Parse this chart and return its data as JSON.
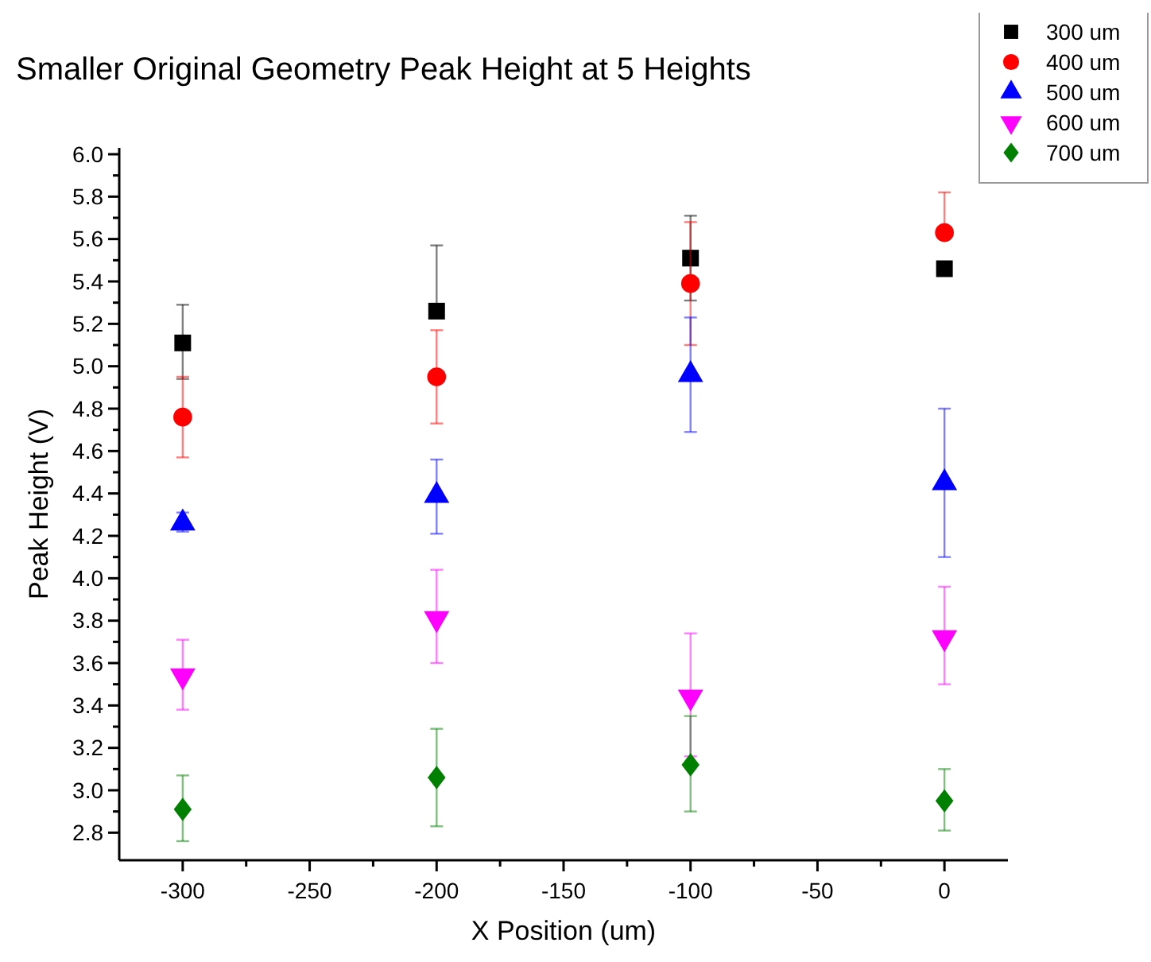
{
  "chart_data": {
    "type": "scatter",
    "title": "Smaller Original Geometry Peak Height at 5 Heights",
    "xlabel": "X Position (um)",
    "ylabel": "Peak Height (V)",
    "x": [
      -300,
      -200,
      -100,
      0
    ],
    "xlim": [
      -325,
      25
    ],
    "xticks": [
      -300,
      {
        "value": -275,
        "label": null
      },
      -250,
      {
        "value": -225,
        "label": null
      },
      -200,
      {
        "value": -175,
        "label": null
      },
      -150,
      {
        "value": -125,
        "label": null
      },
      -100,
      {
        "value": -75,
        "label": null
      },
      -50,
      {
        "value": -25,
        "label": null
      },
      0
    ],
    "ylim": [
      2.67,
      6.03
    ],
    "yticks": [
      2.8,
      {
        "value": 2.9,
        "label": null
      },
      {
        "value": 3,
        "label": "3.0"
      },
      {
        "value": 3.1,
        "label": null
      },
      3.2,
      {
        "value": 3.3,
        "label": null
      },
      3.4,
      {
        "value": 3.5,
        "label": null
      },
      3.6,
      {
        "value": 3.7,
        "label": null
      },
      3.8,
      {
        "value": 3.9,
        "label": null
      },
      {
        "value": 4,
        "label": "4.0"
      },
      {
        "value": 4.1,
        "label": null
      },
      4.2,
      {
        "value": 4.3,
        "label": null
      },
      4.4,
      {
        "value": 4.5,
        "label": null
      },
      4.6,
      {
        "value": 4.7,
        "label": null
      },
      4.8,
      {
        "value": 4.9,
        "label": null
      },
      {
        "value": 5,
        "label": "5.0"
      },
      {
        "value": 5.1,
        "label": null
      },
      5.2,
      {
        "value": 5.3,
        "label": null
      },
      5.4,
      {
        "value": 5.5,
        "label": null
      },
      5.6,
      {
        "value": 5.7,
        "label": null
      },
      5.8,
      {
        "value": 5.9,
        "label": null
      },
      {
        "value": 6,
        "label": "6.0"
      }
    ],
    "grid": false,
    "legend": "top right",
    "series": [
      {
        "name": "300 um",
        "color": "#000000",
        "marker": "square",
        "values": [
          5.11,
          5.26,
          5.51,
          5.46
        ],
        "errors": [
          [
            4.94,
            5.29
          ],
          [
            5.26,
            5.57
          ],
          [
            5.31,
            5.71
          ],
          [
            5.45,
            5.47
          ]
        ]
      },
      {
        "name": "400 um",
        "color": "#ff0000",
        "marker": "circle",
        "values": [
          4.76,
          4.95,
          5.39,
          5.63
        ],
        "errors": [
          [
            4.57,
            4.95
          ],
          [
            4.73,
            5.17
          ],
          [
            5.1,
            5.68
          ],
          [
            5.63,
            5.82
          ]
        ]
      },
      {
        "name": "500 um",
        "color": "#0000ff",
        "marker": "triangle",
        "values": [
          4.26,
          4.39,
          4.96,
          4.45
        ],
        "errors": [
          [
            4.22,
            4.31
          ],
          [
            4.21,
            4.56
          ],
          [
            4.69,
            5.23
          ],
          [
            4.1,
            4.8
          ]
        ]
      },
      {
        "name": "600 um",
        "color": "#ff00ff",
        "marker": "triangle-down",
        "values": [
          3.54,
          3.81,
          3.44,
          3.72
        ],
        "errors": [
          [
            3.38,
            3.71
          ],
          [
            3.6,
            4.04
          ],
          [
            3.16,
            3.74
          ],
          [
            3.5,
            3.96
          ]
        ]
      },
      {
        "name": "700 um",
        "color": "#008000",
        "marker": "diamond",
        "values": [
          2.91,
          3.06,
          3.12,
          2.95
        ],
        "errors": [
          [
            2.76,
            3.07
          ],
          [
            2.83,
            3.29
          ],
          [
            2.9,
            3.35
          ],
          [
            2.81,
            3.1
          ]
        ]
      }
    ]
  }
}
